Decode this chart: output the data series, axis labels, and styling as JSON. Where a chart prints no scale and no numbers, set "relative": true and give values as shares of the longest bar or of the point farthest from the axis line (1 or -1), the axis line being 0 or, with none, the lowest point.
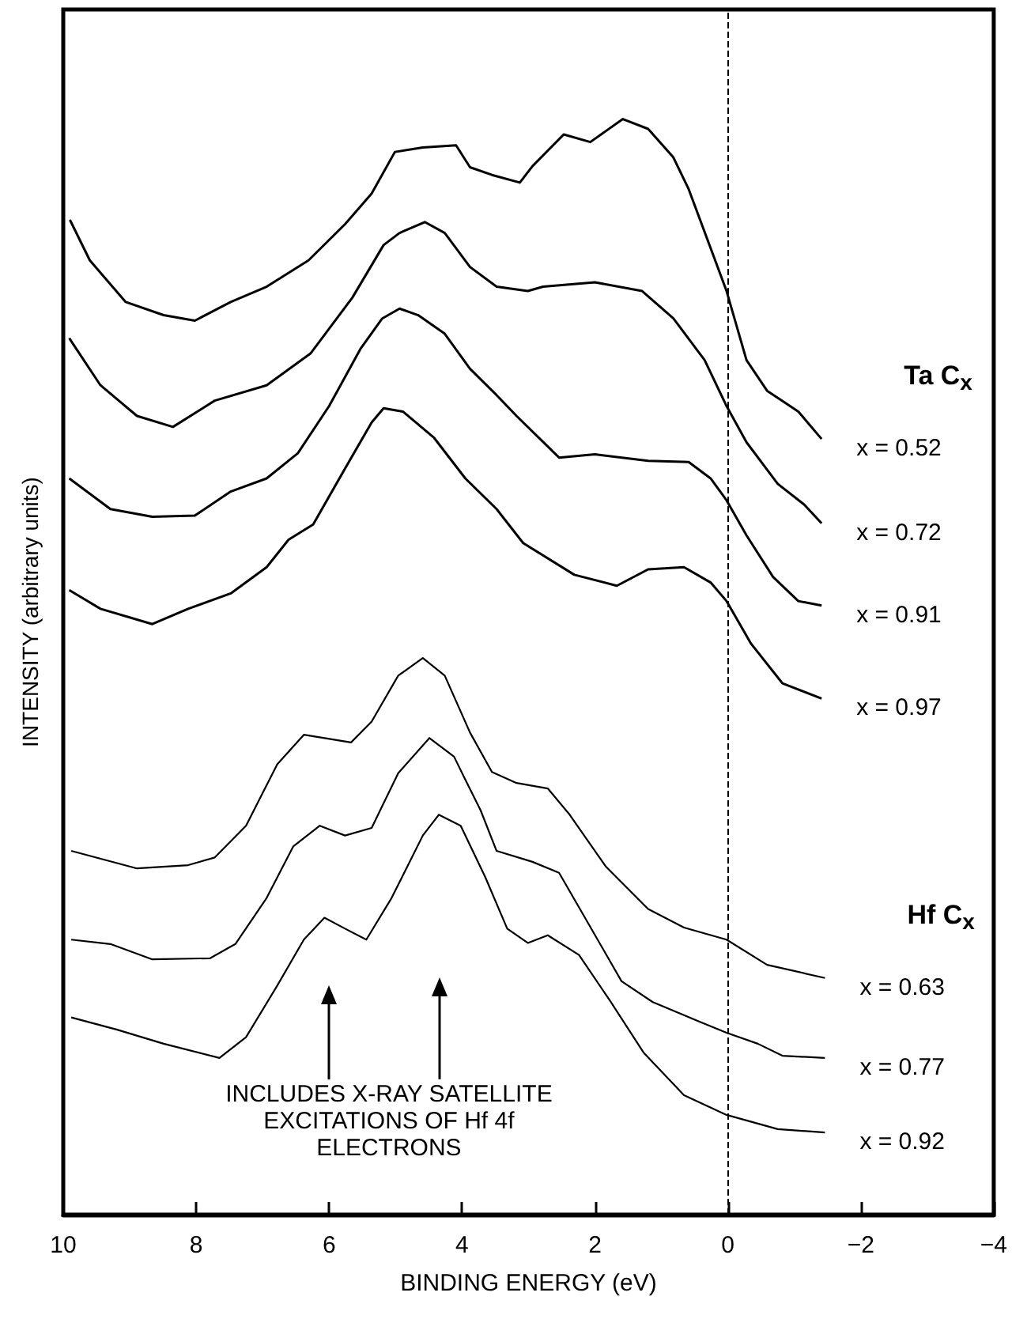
{
  "chart_data": {
    "type": "line",
    "relative": true,
    "xlabel": "BINDING ENERGY (eV)",
    "ylabel": "INTENSITY (arbitrary units)",
    "xlim": [
      10,
      -4
    ],
    "xticks": [
      10,
      8,
      6,
      4,
      2,
      0,
      {
        "value": -2,
        "label": "−2"
      },
      {
        "value": -4,
        "label": "−4"
      }
    ],
    "tick_labels": "x",
    "grid": false,
    "marker": "none",
    "line_style": "solid",
    "ref_lines": [
      {
        "axis": "x",
        "value": 0,
        "line_style": "dashed",
        "color": "#000000"
      }
    ],
    "annotations": [
      "Ta C$_{x}$",
      "Hf C$_{x}$",
      "INCLUDES X-RAY SATELLITE\nEXCITATIONS OF Hf 4f\nELECTRONS"
    ],
    "series": [
      {
        "name": "x = 0.52",
        "color": "#000000",
        "x": [
          9.9,
          9.6,
          9.06,
          8.49,
          8.02,
          7.48,
          6.94,
          6.31,
          5.76,
          5.36,
          5.01,
          4.59,
          4.09,
          3.88,
          3.55,
          3.13,
          2.94,
          2.47,
          2.07,
          1.58,
          1.2,
          0.82,
          0.59,
          0.24,
          0.02,
          -0.28,
          -0.59,
          -1.06,
          -1.41
        ],
        "values": [
          0.908,
          0.871,
          0.833,
          0.821,
          0.816,
          0.833,
          0.847,
          0.871,
          0.904,
          0.932,
          0.97,
          0.974,
          0.976,
          0.956,
          0.949,
          0.942,
          0.957,
          0.986,
          0.979,
          1.0,
          0.991,
          0.965,
          0.936,
          0.879,
          0.843,
          0.78,
          0.752,
          0.733,
          0.708
        ]
      },
      {
        "name": "x = 0.72",
        "color": "#000000",
        "x": [
          9.91,
          9.44,
          8.89,
          8.35,
          7.72,
          6.94,
          6.28,
          5.65,
          5.18,
          4.94,
          4.56,
          4.26,
          3.88,
          3.48,
          3.01,
          2.78,
          2.0,
          1.29,
          0.82,
          0.35,
          0.02,
          -0.28,
          -0.75,
          -1.15,
          -1.41
        ],
        "values": [
          0.8,
          0.757,
          0.729,
          0.719,
          0.743,
          0.757,
          0.786,
          0.837,
          0.885,
          0.896,
          0.906,
          0.896,
          0.865,
          0.847,
          0.843,
          0.847,
          0.851,
          0.843,
          0.818,
          0.78,
          0.738,
          0.705,
          0.667,
          0.648,
          0.631
        ]
      },
      {
        "name": "x = 0.91",
        "color": "#000000",
        "x": [
          9.91,
          9.29,
          8.66,
          8.02,
          7.48,
          6.94,
          6.47,
          6.0,
          5.53,
          5.2,
          4.94,
          4.66,
          4.26,
          3.88,
          3.48,
          3.18,
          2.54,
          2.0,
          1.2,
          0.59,
          0.26,
          0.02,
          -0.28,
          -0.68,
          -1.06,
          -1.41
        ],
        "values": [
          0.672,
          0.644,
          0.637,
          0.638,
          0.66,
          0.672,
          0.695,
          0.738,
          0.79,
          0.818,
          0.827,
          0.821,
          0.804,
          0.772,
          0.748,
          0.729,
          0.691,
          0.694,
          0.688,
          0.687,
          0.672,
          0.652,
          0.62,
          0.582,
          0.56,
          0.556
        ]
      },
      {
        "name": "x = 0.97",
        "color": "#000000",
        "x": [
          9.91,
          9.44,
          8.66,
          8.12,
          7.48,
          6.94,
          6.61,
          6.24,
          5.76,
          5.36,
          5.18,
          4.89,
          4.42,
          3.95,
          3.48,
          3.08,
          2.31,
          1.67,
          1.2,
          0.66,
          0.26,
          0.02,
          -0.35,
          -0.82,
          -1.41
        ],
        "values": [
          0.57,
          0.553,
          0.539,
          0.553,
          0.567,
          0.591,
          0.616,
          0.63,
          0.681,
          0.723,
          0.736,
          0.733,
          0.709,
          0.672,
          0.644,
          0.613,
          0.584,
          0.574,
          0.589,
          0.591,
          0.577,
          0.56,
          0.521,
          0.485,
          0.471
        ]
      },
      {
        "name": "x = 0.63",
        "color": "#000000",
        "x": [
          9.88,
          8.89,
          8.12,
          7.72,
          7.25,
          6.78,
          6.38,
          6.07,
          5.67,
          5.36,
          4.96,
          4.59,
          4.26,
          3.88,
          3.55,
          3.18,
          2.71,
          2.38,
          1.84,
          1.2,
          0.66,
          0.02,
          -0.59,
          -1.46
        ],
        "values": [
          0.332,
          0.316,
          0.319,
          0.326,
          0.355,
          0.411,
          0.438,
          0.435,
          0.431,
          0.45,
          0.492,
          0.508,
          0.492,
          0.44,
          0.404,
          0.394,
          0.389,
          0.365,
          0.318,
          0.279,
          0.262,
          0.251,
          0.228,
          0.216
        ]
      },
      {
        "name": "x = 0.77",
        "color": "#000000",
        "x": [
          9.88,
          9.29,
          8.66,
          7.79,
          7.41,
          6.94,
          6.54,
          6.14,
          5.76,
          5.36,
          4.96,
          4.49,
          4.12,
          3.95,
          3.72,
          3.48,
          2.94,
          2.54,
          2.14,
          1.6,
          1.13,
          0.42,
          0.02,
          -0.45,
          -0.82,
          -1.46
        ],
        "values": [
          0.251,
          0.247,
          0.233,
          0.234,
          0.247,
          0.289,
          0.336,
          0.355,
          0.346,
          0.353,
          0.403,
          0.435,
          0.418,
          0.397,
          0.369,
          0.332,
          0.322,
          0.312,
          0.27,
          0.213,
          0.194,
          0.176,
          0.166,
          0.156,
          0.145,
          0.143
        ]
      },
      {
        "name": "x = 0.92",
        "color": "#000000",
        "x": [
          9.88,
          9.2,
          8.49,
          7.65,
          7.25,
          6.78,
          6.38,
          6.07,
          5.76,
          5.44,
          5.06,
          4.59,
          4.35,
          4.02,
          3.65,
          3.32,
          3.01,
          2.71,
          2.24,
          1.76,
          1.27,
          0.66,
          0.02,
          -0.75,
          -1.46
        ],
        "values": [
          0.18,
          0.169,
          0.156,
          0.143,
          0.162,
          0.209,
          0.251,
          0.271,
          0.261,
          0.251,
          0.289,
          0.346,
          0.365,
          0.355,
          0.308,
          0.261,
          0.248,
          0.255,
          0.237,
          0.194,
          0.148,
          0.109,
          0.091,
          0.078,
          0.075
        ]
      }
    ]
  }
}
